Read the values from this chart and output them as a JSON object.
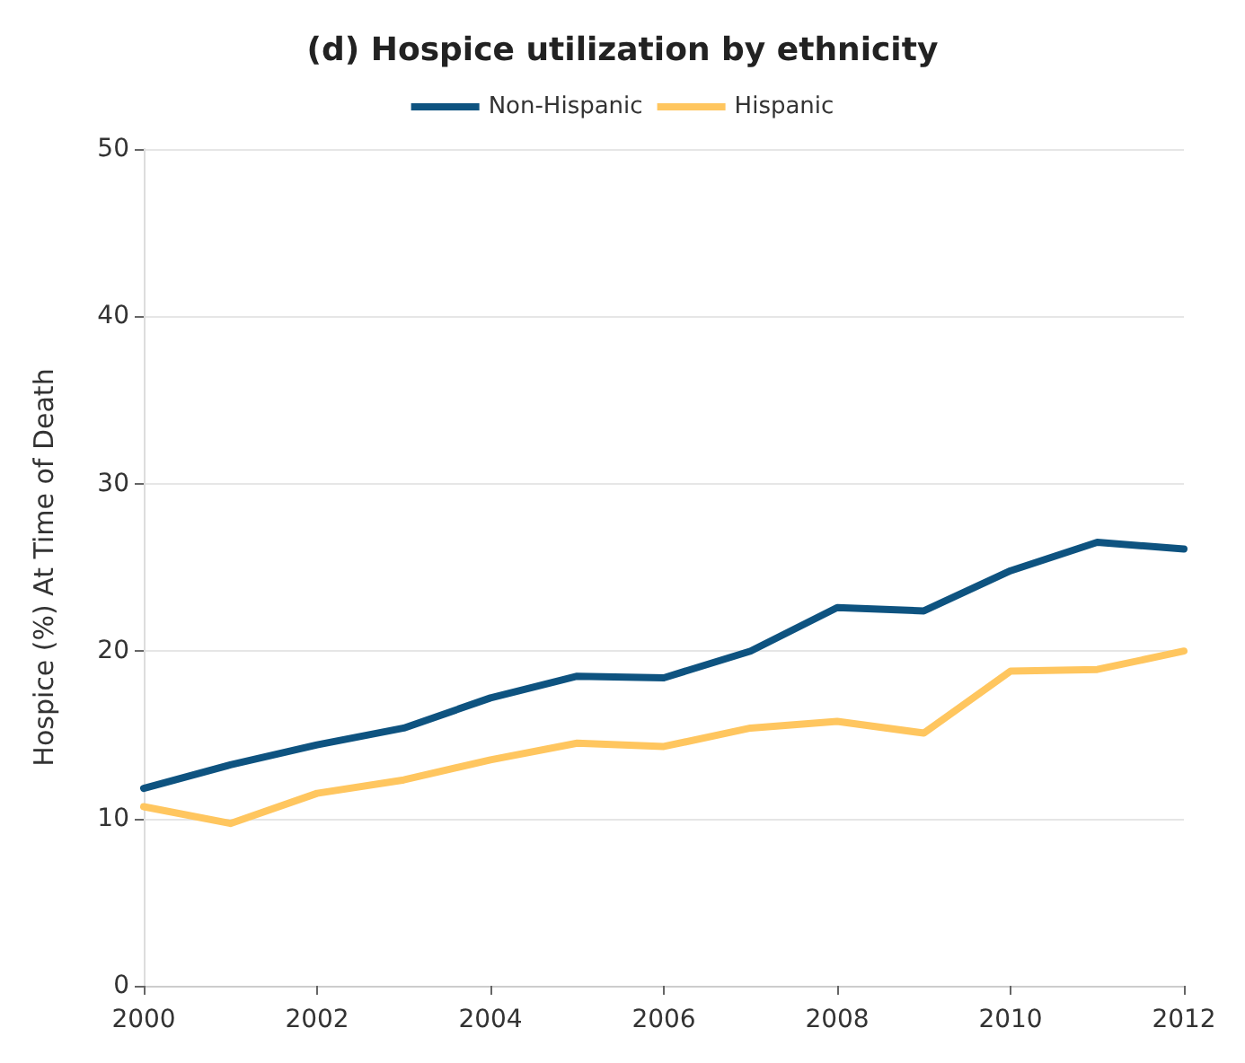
{
  "chart_data": {
    "type": "line",
    "title": "(d) Hospice utilization by ethnicity",
    "ylabel": "Hospice (%) At Time of Death",
    "x": [
      2000,
      2001,
      2002,
      2003,
      2004,
      2005,
      2006,
      2007,
      2008,
      2009,
      2010,
      2011,
      2012
    ],
    "series": [
      {
        "name": "Non-Hispanic",
        "color": "#0e5380",
        "values": [
          11.8,
          13.2,
          14.4,
          15.4,
          17.2,
          18.5,
          18.4,
          20.0,
          22.6,
          22.4,
          24.8,
          26.5,
          26.1
        ]
      },
      {
        "name": "Hispanic",
        "color": "#ffc65f",
        "values": [
          10.7,
          9.7,
          11.5,
          12.3,
          13.5,
          14.5,
          14.3,
          15.4,
          15.8,
          15.1,
          18.8,
          18.9,
          20.0
        ]
      }
    ],
    "xlim": [
      2000,
      2012
    ],
    "xticks": [
      2000,
      2002,
      2004,
      2006,
      2008,
      2010,
      2012
    ],
    "ylim": [
      0,
      50
    ],
    "yticks": [
      0,
      10,
      20,
      30,
      40,
      50
    ],
    "grid": "y",
    "legend": "top",
    "marker": "none",
    "line_style": "solid"
  }
}
